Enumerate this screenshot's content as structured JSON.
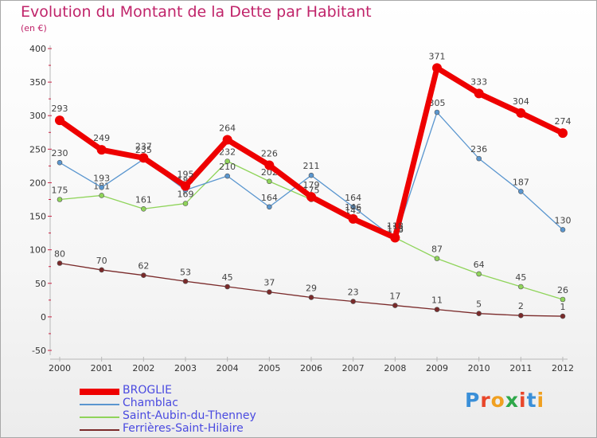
{
  "title": "Evolution du Montant de la Dette par Habitant",
  "subtitle": "(en €)",
  "logo": {
    "text": "Proxiti",
    "colors": [
      "#3a8fd8",
      "#e8462a",
      "#f0a020",
      "#2ea84a",
      "#e8462a",
      "#3a8fd8",
      "#f0a020"
    ]
  },
  "chart_data": {
    "type": "line",
    "x": [
      "2000",
      "2001",
      "2002",
      "2003",
      "2004",
      "2005",
      "2006",
      "2007",
      "2008",
      "2009",
      "2010",
      "2011",
      "2012"
    ],
    "ylim": [
      -50,
      400
    ],
    "yticks": [
      "-50",
      "0",
      "50",
      "100",
      "150",
      "200",
      "250",
      "300",
      "350",
      "400"
    ],
    "grid": false,
    "legend_position": "bottom-left",
    "series": [
      {
        "name": "Ferrières-Saint-Hilaire",
        "color": "#7a2a2a",
        "values": [
          80,
          70,
          62,
          53,
          45,
          37,
          29,
          23,
          17,
          11,
          5,
          2,
          1
        ],
        "labels": [
          "80",
          "70",
          "62",
          "53",
          "45",
          "37",
          "29",
          "23",
          "17",
          "11",
          "5",
          "2",
          "1"
        ]
      },
      {
        "name": "Saint-Aubin-du-Thenney",
        "color": "#8fd45a",
        "values": [
          175,
          181,
          161,
          169,
          232,
          202,
          175,
          145,
          118,
          87,
          64,
          45,
          26
        ],
        "labels": [
          "175",
          "181",
          "161",
          "169",
          "232",
          "202",
          "175",
          "145",
          "118",
          "87",
          "64",
          "45",
          "26"
        ]
      },
      {
        "name": "Chamblac",
        "color": "#5a96cf",
        "values": [
          230,
          193,
          235,
          189,
          210,
          164,
          211,
          164,
          116,
          305,
          236,
          187,
          130
        ],
        "labels": [
          "230",
          "193",
          "235",
          "189",
          "210",
          "164",
          "211",
          "164",
          "116",
          "305",
          "236",
          "187",
          "130"
        ]
      },
      {
        "name": "BROGLIE",
        "color": "#ee0000",
        "values": [
          293,
          249,
          237,
          195,
          264,
          226,
          179,
          146,
          118,
          371,
          333,
          304,
          274
        ],
        "labels": [
          "293",
          "249",
          "237",
          "195",
          "264",
          "226",
          "179",
          "146",
          "118",
          "371",
          "333",
          "304",
          "274"
        ]
      }
    ]
  }
}
